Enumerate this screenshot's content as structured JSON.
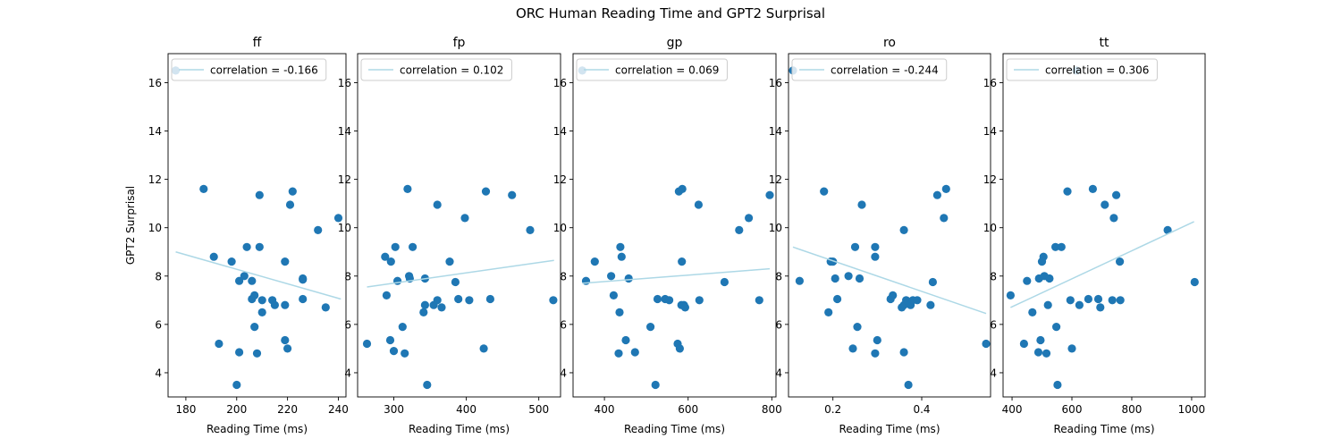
{
  "figure": {
    "suptitle": "ORC Human Reading Time and GPT2 Surprisal"
  },
  "colors": {
    "points": "#1f77b4",
    "regression": "#add8e6",
    "axes": "#000000"
  },
  "chart_data": [
    {
      "type": "scatter",
      "title": "ff",
      "xlabel": "Reading Time (ms)",
      "ylabel": "GPT2 Surprisal",
      "xlim": [
        173,
        243
      ],
      "ylim": [
        3,
        17.2
      ],
      "xticks": [
        180,
        200,
        220,
        240
      ],
      "yticks": [
        4,
        6,
        8,
        10,
        12,
        14,
        16
      ],
      "legend": {
        "label": "correlation = -0.166",
        "placement": "upper-left"
      },
      "regression_line": {
        "x": [
          176,
          241
        ],
        "y": [
          9.0,
          7.05
        ]
      },
      "points": [
        [
          176,
          16.5
        ],
        [
          187,
          11.6
        ],
        [
          191,
          8.8
        ],
        [
          193,
          5.2
        ],
        [
          198,
          8.6
        ],
        [
          200,
          3.5
        ],
        [
          201,
          7.8
        ],
        [
          201,
          4.85
        ],
        [
          203,
          8.0
        ],
        [
          204,
          9.2
        ],
        [
          206,
          7.8
        ],
        [
          206,
          7.05
        ],
        [
          207,
          7.2
        ],
        [
          207,
          5.9
        ],
        [
          208,
          4.8
        ],
        [
          209,
          9.2
        ],
        [
          209,
          11.35
        ],
        [
          210,
          7.0
        ],
        [
          210,
          6.5
        ],
        [
          214,
          7.0
        ],
        [
          215,
          6.8
        ],
        [
          219,
          8.6
        ],
        [
          219,
          6.8
        ],
        [
          219,
          5.35
        ],
        [
          220,
          5.0
        ],
        [
          221,
          10.95
        ],
        [
          222,
          11.5
        ],
        [
          226,
          7.9
        ],
        [
          226,
          7.85
        ],
        [
          226,
          7.05
        ],
        [
          232,
          9.9
        ],
        [
          235,
          6.7
        ],
        [
          240,
          10.4
        ]
      ]
    },
    {
      "type": "scatter",
      "title": "fp",
      "xlabel": "Reading Time (ms)",
      "ylabel": "",
      "xlim": [
        250,
        530
      ],
      "ylim": [
        3,
        17.2
      ],
      "xticks": [
        300,
        400,
        500
      ],
      "yticks": [
        4,
        6,
        8,
        10,
        12,
        14,
        16
      ],
      "legend": {
        "label": "correlation = 0.102",
        "placement": "upper-left"
      },
      "regression_line": {
        "x": [
          263,
          521
        ],
        "y": [
          7.55,
          8.65
        ]
      },
      "points": [
        [
          263,
          5.2
        ],
        [
          288,
          8.8
        ],
        [
          290,
          7.2
        ],
        [
          295,
          5.35
        ],
        [
          296,
          8.6
        ],
        [
          300,
          4.9
        ],
        [
          302,
          9.2
        ],
        [
          305,
          7.8
        ],
        [
          312,
          5.9
        ],
        [
          315,
          4.8
        ],
        [
          319,
          11.6
        ],
        [
          321,
          8.0
        ],
        [
          322,
          7.9
        ],
        [
          326,
          9.2
        ],
        [
          341,
          6.5
        ],
        [
          343,
          6.8
        ],
        [
          343,
          7.9
        ],
        [
          346,
          3.5
        ],
        [
          355,
          6.8
        ],
        [
          360,
          10.95
        ],
        [
          360,
          7.0
        ],
        [
          366,
          6.7
        ],
        [
          377,
          8.6
        ],
        [
          385,
          7.75
        ],
        [
          389,
          7.05
        ],
        [
          398,
          10.4
        ],
        [
          404,
          7.0
        ],
        [
          424,
          5.0
        ],
        [
          427,
          11.5
        ],
        [
          433,
          7.05
        ],
        [
          463,
          11.35
        ],
        [
          488,
          9.9
        ],
        [
          520,
          7.0
        ]
      ]
    },
    {
      "type": "scatter",
      "title": "gp",
      "xlabel": "Reading Time (ms)",
      "ylabel": "",
      "xlim": [
        325,
        810
      ],
      "ylim": [
        3,
        17.2
      ],
      "xticks": [
        400,
        600,
        800
      ],
      "yticks": [
        4,
        6,
        8,
        10,
        12,
        14,
        16
      ],
      "legend": {
        "label": "correlation = 0.069",
        "placement": "upper-left"
      },
      "regression_line": {
        "x": [
          347,
          795
        ],
        "y": [
          7.7,
          8.3
        ]
      },
      "points": [
        [
          347,
          16.5
        ],
        [
          356,
          7.8
        ],
        [
          377,
          8.6
        ],
        [
          416,
          8.0
        ],
        [
          422,
          7.2
        ],
        [
          434,
          4.8
        ],
        [
          436,
          6.5
        ],
        [
          438,
          9.2
        ],
        [
          441,
          8.8
        ],
        [
          451,
          5.35
        ],
        [
          458,
          7.9
        ],
        [
          473,
          4.85
        ],
        [
          510,
          5.9
        ],
        [
          522,
          3.5
        ],
        [
          527,
          7.05
        ],
        [
          545,
          7.05
        ],
        [
          555,
          7.0
        ],
        [
          575,
          5.2
        ],
        [
          578,
          11.5
        ],
        [
          580,
          5.0
        ],
        [
          584,
          6.8
        ],
        [
          585,
          8.6
        ],
        [
          586,
          11.6
        ],
        [
          590,
          6.8
        ],
        [
          593,
          6.7
        ],
        [
          625,
          10.95
        ],
        [
          627,
          7.0
        ],
        [
          687,
          7.75
        ],
        [
          722,
          9.9
        ],
        [
          745,
          10.4
        ],
        [
          770,
          7.0
        ],
        [
          795,
          11.35
        ]
      ]
    },
    {
      "type": "scatter",
      "title": "ro",
      "xlabel": "Reading Time (ms)",
      "ylabel": "",
      "xlim": [
        0.1,
        0.555
      ],
      "ylim": [
        3,
        17.2
      ],
      "xticks": [
        0.2,
        0.4
      ],
      "yticks": [
        4,
        6,
        8,
        10,
        12,
        14,
        16
      ],
      "legend": {
        "label": "correlation = -0.244",
        "placement": "upper-left"
      },
      "regression_line": {
        "x": [
          0.11,
          0.545
        ],
        "y": [
          9.2,
          6.45
        ]
      },
      "points": [
        [
          0.11,
          16.5
        ],
        [
          0.125,
          7.8
        ],
        [
          0.18,
          11.5
        ],
        [
          0.19,
          6.5
        ],
        [
          0.195,
          8.6
        ],
        [
          0.2,
          8.6
        ],
        [
          0.205,
          7.9
        ],
        [
          0.21,
          7.05
        ],
        [
          0.235,
          8.0
        ],
        [
          0.245,
          5.0
        ],
        [
          0.25,
          9.2
        ],
        [
          0.255,
          5.9
        ],
        [
          0.26,
          7.9
        ],
        [
          0.265,
          10.95
        ],
        [
          0.295,
          9.2
        ],
        [
          0.295,
          8.8
        ],
        [
          0.295,
          4.8
        ],
        [
          0.3,
          5.35
        ],
        [
          0.33,
          7.05
        ],
        [
          0.335,
          7.2
        ],
        [
          0.355,
          6.7
        ],
        [
          0.36,
          6.8
        ],
        [
          0.36,
          9.9
        ],
        [
          0.36,
          4.85
        ],
        [
          0.365,
          7.0
        ],
        [
          0.37,
          3.5
        ],
        [
          0.375,
          6.8
        ],
        [
          0.38,
          7.0
        ],
        [
          0.39,
          7.0
        ],
        [
          0.42,
          6.8
        ],
        [
          0.425,
          7.75
        ],
        [
          0.435,
          11.35
        ],
        [
          0.45,
          10.4
        ],
        [
          0.455,
          11.6
        ],
        [
          0.545,
          5.2
        ]
      ]
    },
    {
      "type": "scatter",
      "title": "tt",
      "xlabel": "Reading Time (ms)",
      "ylabel": "",
      "xlim": [
        370,
        1045
      ],
      "ylim": [
        3,
        17.2
      ],
      "xticks": [
        400,
        600,
        800,
        1000
      ],
      "yticks": [
        4,
        6,
        8,
        10,
        12,
        14,
        16
      ],
      "legend": {
        "label": "correlation = 0.306",
        "placement": "upper-left"
      },
      "regression_line": {
        "x": [
          395,
          1008
        ],
        "y": [
          6.7,
          10.25
        ]
      },
      "points": [
        [
          395,
          7.2
        ],
        [
          440,
          5.2
        ],
        [
          450,
          7.8
        ],
        [
          468,
          6.5
        ],
        [
          488,
          4.85
        ],
        [
          490,
          7.9
        ],
        [
          495,
          5.35
        ],
        [
          500,
          8.6
        ],
        [
          505,
          8.8
        ],
        [
          508,
          8.0
        ],
        [
          515,
          4.8
        ],
        [
          520,
          6.8
        ],
        [
          525,
          7.9
        ],
        [
          545,
          9.2
        ],
        [
          548,
          5.9
        ],
        [
          552,
          3.5
        ],
        [
          565,
          9.2
        ],
        [
          585,
          11.5
        ],
        [
          595,
          7.0
        ],
        [
          600,
          5.0
        ],
        [
          615,
          16.5
        ],
        [
          625,
          6.8
        ],
        [
          655,
          7.05
        ],
        [
          670,
          11.6
        ],
        [
          688,
          7.05
        ],
        [
          695,
          6.7
        ],
        [
          710,
          10.95
        ],
        [
          735,
          7.0
        ],
        [
          740,
          10.4
        ],
        [
          748,
          11.35
        ],
        [
          760,
          8.6
        ],
        [
          762,
          7.0
        ],
        [
          920,
          9.9
        ],
        [
          1010,
          7.75
        ]
      ]
    }
  ]
}
